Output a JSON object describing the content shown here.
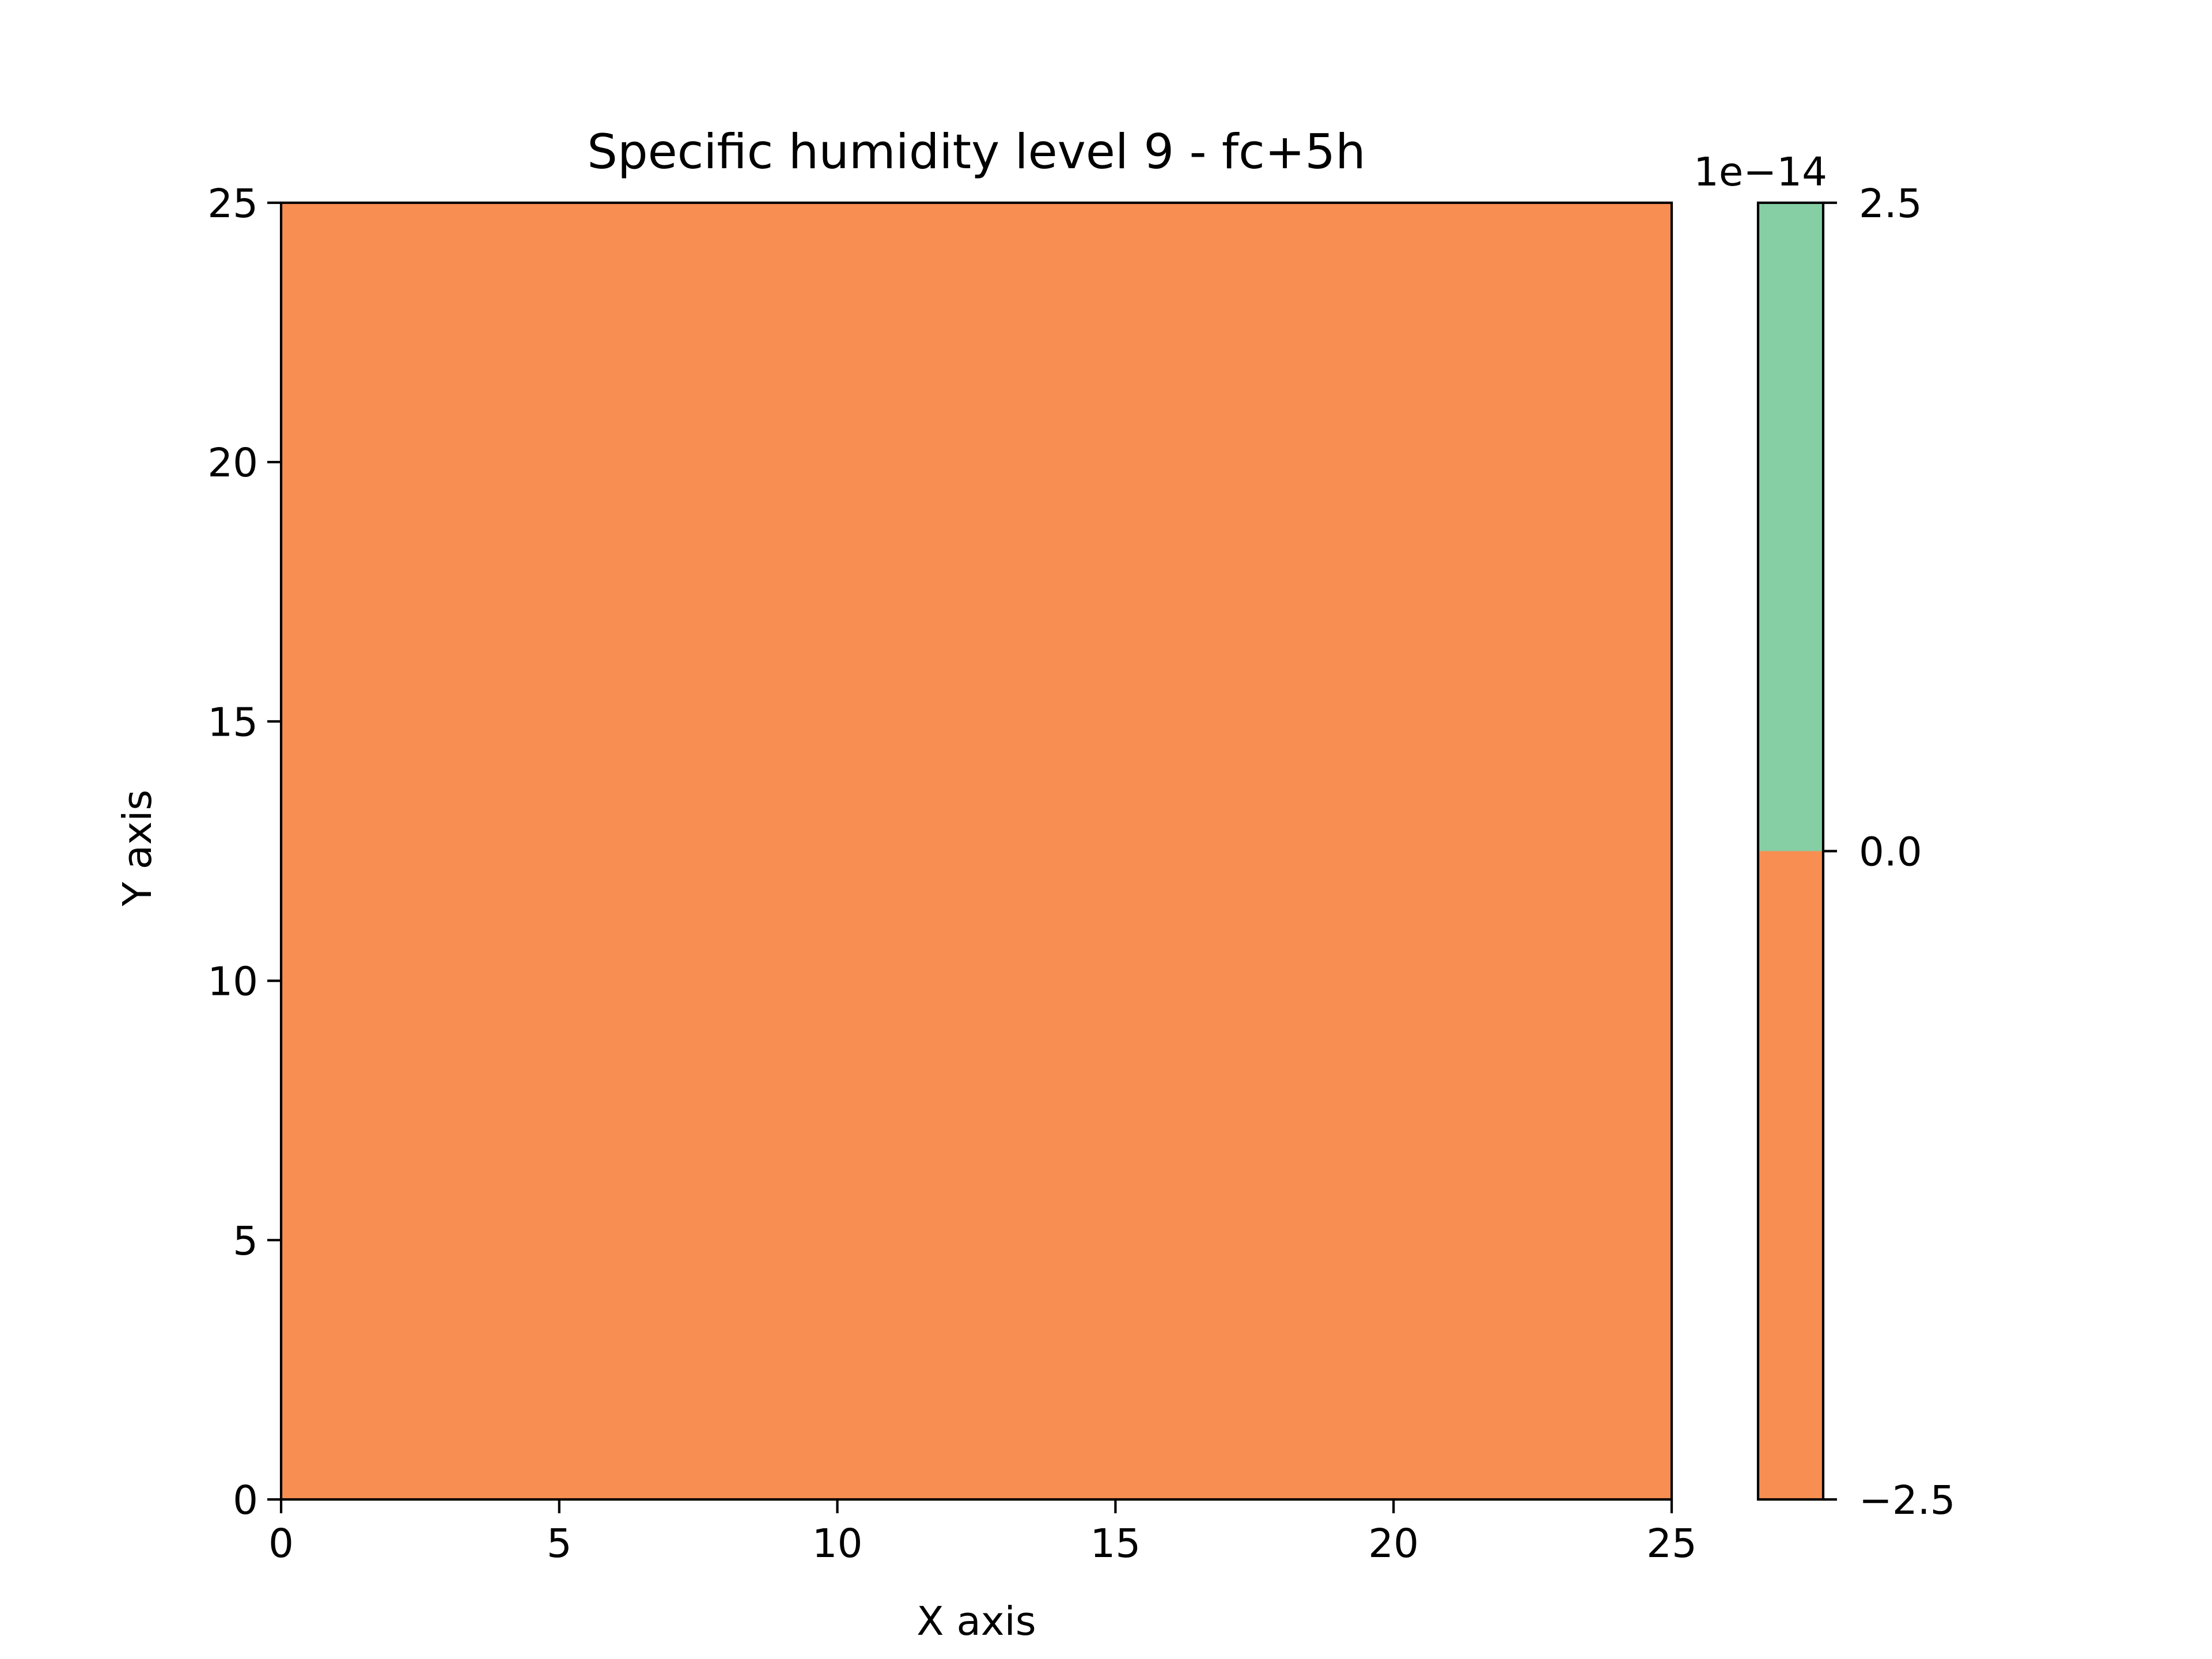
{
  "chart_data": {
    "type": "heatmap",
    "title": "Specific humidity level 9 - fc+5h",
    "xlabel": "X axis",
    "ylabel": "Y axis",
    "xlim": [
      0,
      25
    ],
    "ylim": [
      0,
      25
    ],
    "xticks": [
      0,
      5,
      10,
      15,
      20,
      25
    ],
    "yticks": [
      0,
      5,
      10,
      15,
      20,
      25
    ],
    "xtick_labels": [
      "0",
      "5",
      "10",
      "15",
      "20",
      "25"
    ],
    "ytick_labels": [
      "0",
      "5",
      "10",
      "15",
      "20",
      "25"
    ],
    "grid": false,
    "field": {
      "x_range": [
        0,
        25
      ],
      "y_range": [
        0,
        25
      ],
      "value": 0,
      "color": "#f98e52"
    },
    "colorbar": {
      "placement": "right",
      "offset_label": "1e−14",
      "range": [
        -2.5,
        2.5
      ],
      "ticks": [
        -2.5,
        0.0,
        2.5
      ],
      "tick_labels": [
        "−2.5",
        "0.0",
        "2.5"
      ],
      "bins": [
        {
          "from": -2.5,
          "to": 0.0,
          "color": "#f98e52"
        },
        {
          "from": 0.0,
          "to": 2.5,
          "color": "#86cfa5"
        }
      ]
    }
  }
}
